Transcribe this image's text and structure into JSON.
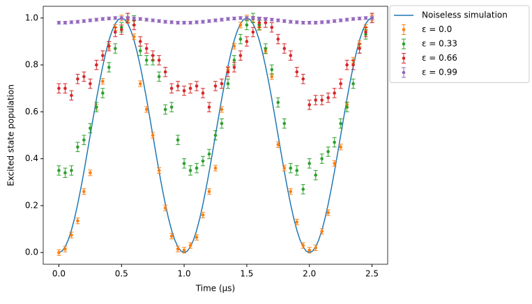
{
  "chart_data": {
    "type": "errorbar",
    "xlabel": "Time (µs)",
    "ylabel": "Excited state population",
    "xlim": [
      -0.125,
      2.625
    ],
    "ylim": [
      -0.05,
      1.05
    ],
    "xticks": [
      {
        "value": 0,
        "label": "0.0"
      },
      {
        "value": 0.5,
        "label": "0.5"
      },
      {
        "value": 1,
        "label": "1.0"
      },
      {
        "value": 1.5,
        "label": "1.5"
      },
      {
        "value": 2,
        "label": "2.0"
      },
      {
        "value": 2.5,
        "label": "2.5"
      }
    ],
    "yticks": [
      {
        "value": 0,
        "label": "0.0"
      },
      {
        "value": 0.2,
        "label": "0.2"
      },
      {
        "value": 0.4,
        "label": "0.4"
      },
      {
        "value": 0.6,
        "label": "0.6"
      },
      {
        "value": 0.8,
        "label": "0.8"
      },
      {
        "value": 1,
        "label": "1.0"
      }
    ],
    "legend": "outside upper right",
    "line": {
      "name": "Noiseless simulation",
      "color": "#1f77b4",
      "x": [
        0,
        0.025,
        0.05,
        0.075,
        0.1,
        0.125,
        0.15,
        0.175,
        0.2,
        0.225,
        0.25,
        0.275,
        0.3,
        0.325,
        0.35,
        0.375,
        0.4,
        0.425,
        0.45,
        0.475,
        0.5,
        0.525,
        0.55,
        0.575,
        0.6,
        0.625,
        0.65,
        0.675,
        0.7,
        0.725,
        0.75,
        0.775,
        0.8,
        0.825,
        0.85,
        0.875,
        0.9,
        0.925,
        0.95,
        0.975,
        1,
        1.025,
        1.05,
        1.075,
        1.1,
        1.125,
        1.15,
        1.175,
        1.2,
        1.225,
        1.25,
        1.275,
        1.3,
        1.325,
        1.35,
        1.375,
        1.4,
        1.425,
        1.45,
        1.475,
        1.5,
        1.525,
        1.55,
        1.575,
        1.6,
        1.625,
        1.65,
        1.675,
        1.7,
        1.725,
        1.75,
        1.775,
        1.8,
        1.825,
        1.85,
        1.875,
        1.9,
        1.925,
        1.95,
        1.975,
        2,
        2.025,
        2.05,
        2.075,
        2.1,
        2.125,
        2.15,
        2.175,
        2.2,
        2.225,
        2.25,
        2.275,
        2.3,
        2.325,
        2.35,
        2.375,
        2.4,
        2.425,
        2.45,
        2.475,
        2.5
      ],
      "values": [
        0,
        0.006,
        0.024,
        0.054,
        0.095,
        0.146,
        0.206,
        0.273,
        0.345,
        0.422,
        0.5,
        0.578,
        0.655,
        0.727,
        0.794,
        0.854,
        0.905,
        0.946,
        0.976,
        0.994,
        1,
        0.994,
        0.976,
        0.946,
        0.905,
        0.854,
        0.794,
        0.727,
        0.655,
        0.578,
        0.5,
        0.422,
        0.345,
        0.273,
        0.206,
        0.146,
        0.095,
        0.054,
        0.024,
        0.006,
        0,
        0.006,
        0.024,
        0.054,
        0.095,
        0.146,
        0.206,
        0.273,
        0.345,
        0.422,
        0.5,
        0.578,
        0.655,
        0.727,
        0.794,
        0.854,
        0.905,
        0.946,
        0.976,
        0.994,
        1,
        0.994,
        0.976,
        0.946,
        0.905,
        0.854,
        0.794,
        0.727,
        0.655,
        0.578,
        0.5,
        0.422,
        0.345,
        0.273,
        0.206,
        0.146,
        0.095,
        0.054,
        0.024,
        0.006,
        0,
        0.006,
        0.024,
        0.054,
        0.095,
        0.146,
        0.206,
        0.273,
        0.345,
        0.422,
        0.5,
        0.578,
        0.655,
        0.727,
        0.794,
        0.854,
        0.905,
        0.946,
        0.976,
        0.994,
        1
      ]
    },
    "x": [
      0,
      0.05,
      0.1,
      0.15,
      0.2,
      0.25,
      0.3,
      0.35,
      0.4,
      0.45,
      0.5,
      0.55,
      0.6,
      0.65,
      0.7,
      0.75,
      0.8,
      0.85,
      0.9,
      0.95,
      1,
      1.05,
      1.1,
      1.15,
      1.2,
      1.25,
      1.3,
      1.35,
      1.4,
      1.45,
      1.5,
      1.55,
      1.6,
      1.65,
      1.7,
      1.75,
      1.8,
      1.85,
      1.9,
      1.95,
      2,
      2.05,
      2.1,
      2.15,
      2.2,
      2.25,
      2.3,
      2.35,
      2.4,
      2.45,
      2.5
    ],
    "series": [
      {
        "name": "ε = 0.0",
        "color": "#ff7f0e",
        "error": 0.012,
        "values": [
          0,
          0.015,
          0.075,
          0.135,
          0.26,
          0.34,
          0.62,
          0.73,
          0.88,
          0.96,
          1,
          0.99,
          0.92,
          0.72,
          0.61,
          0.5,
          0.35,
          0.19,
          0.07,
          0.015,
          0.01,
          0.03,
          0.065,
          0.16,
          0.26,
          0.36,
          0.61,
          0.78,
          0.88,
          0.97,
          1,
          0.995,
          0.96,
          0.86,
          0.75,
          0.46,
          0.36,
          0.26,
          0.13,
          0.03,
          0.01,
          0.02,
          0.09,
          0.17,
          0.38,
          0.45,
          0.63,
          0.82,
          0.89,
          0.96,
          1
        ]
      },
      {
        "name": "ε = 0.33",
        "color": "#2ca02c",
        "error": 0.02,
        "values": [
          0.35,
          0.34,
          0.35,
          0.45,
          0.48,
          0.53,
          0.62,
          0.68,
          0.79,
          0.87,
          0.96,
          1,
          0.99,
          0.86,
          0.82,
          0.82,
          0.75,
          0.61,
          0.62,
          0.48,
          0.38,
          0.35,
          0.36,
          0.39,
          0.42,
          0.5,
          0.55,
          0.72,
          0.82,
          0.91,
          0.97,
          1,
          0.97,
          0.87,
          0.78,
          0.64,
          0.55,
          0.36,
          0.35,
          0.27,
          0.38,
          0.33,
          0.4,
          0.43,
          0.47,
          0.55,
          0.62,
          0.72,
          0.87,
          0.93,
          1
        ]
      },
      {
        "name": "ε = 0.66",
        "color": "#d62728",
        "error": 0.02,
        "values": [
          0.7,
          0.7,
          0.67,
          0.74,
          0.75,
          0.72,
          0.8,
          0.84,
          0.88,
          0.94,
          0.95,
          1,
          0.97,
          0.9,
          0.87,
          0.84,
          0.82,
          0.77,
          0.7,
          0.71,
          0.69,
          0.7,
          0.71,
          0.68,
          0.62,
          0.71,
          0.72,
          0.77,
          0.79,
          0.84,
          0.9,
          0.94,
          0.98,
          0.98,
          0.96,
          0.91,
          0.87,
          0.84,
          0.77,
          0.74,
          0.63,
          0.65,
          0.65,
          0.66,
          0.68,
          0.72,
          0.8,
          0.8,
          0.87,
          0.94,
          1
        ]
      },
      {
        "name": "ε = 0.99",
        "color": "#9467bd",
        "error": 0.006,
        "values": [
          0.98,
          0.98,
          0.982,
          0.984,
          0.987,
          0.99,
          0.993,
          0.996,
          0.998,
          1,
          1,
          1,
          0.998,
          0.996,
          0.993,
          0.99,
          0.987,
          0.984,
          0.982,
          0.98,
          0.98,
          0.98,
          0.982,
          0.984,
          0.987,
          0.99,
          0.993,
          0.996,
          0.998,
          1,
          1,
          1,
          0.998,
          0.996,
          0.993,
          0.99,
          0.987,
          0.984,
          0.982,
          0.98,
          0.98,
          0.98,
          0.982,
          0.984,
          0.987,
          0.99,
          0.993,
          0.996,
          0.998,
          1,
          1
        ]
      }
    ]
  }
}
